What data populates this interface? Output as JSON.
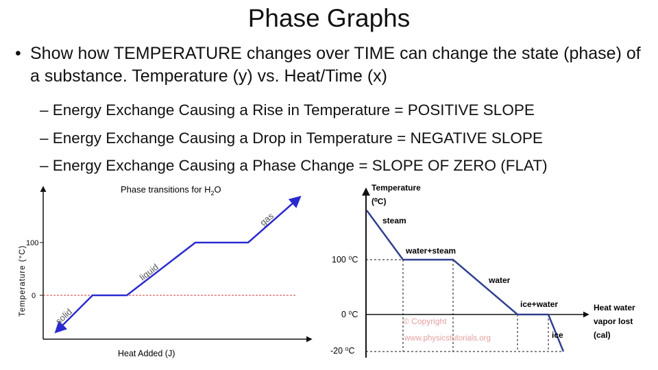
{
  "slide": {
    "title": "Phase Graphs",
    "bullet_mark": "•",
    "bullet": "Show how TEMPERATURE changes over TIME can change the state (phase) of a substance.  Temperature (y) vs. Heat/Time (x)",
    "sub_bullets": [
      "– Energy Exchange Causing a Rise in Temperature = POSITIVE SLOPE",
      "– Energy Exchange Causing a Drop in Temperature = NEGATIVE SLOPE",
      "– Energy Exchange Causing a Phase Change = SLOPE OF ZERO (FLAT)"
    ]
  },
  "left_chart": {
    "title": "Phase transitions for H",
    "title_sub": "2",
    "title_end": "O",
    "ylabel": "Temperature (°C)",
    "xlabel": "Heat Added (J)",
    "y_ticks": [
      "100",
      "0"
    ],
    "labels": {
      "solid": "solid",
      "liquid": "liquid",
      "gas": "gas"
    },
    "colors": {
      "curve": "#2a2ad0",
      "zero_line": "#cc3333"
    }
  },
  "right_chart": {
    "ylabel_1": "Temperature",
    "ylabel_2": "(⁰C)",
    "y_ticks": [
      "100 ⁰C",
      "0 ⁰C",
      "-20 ⁰C"
    ],
    "x_caption": [
      "Heat water",
      "vapor lost",
      "(cal)"
    ],
    "labels": {
      "steam": "steam",
      "water_steam": "water+steam",
      "water": "water",
      "ice_water": "ice+water",
      "ice": "ice"
    },
    "watermark": [
      "© Copyright",
      "www.physicstutorials.org"
    ],
    "colors": {
      "curve": "#2f3f8f",
      "watermark": "#e2a0a0"
    }
  },
  "chart_data": [
    {
      "type": "line",
      "title": "Phase transitions for H2O",
      "xlabel": "Heat Added (J)",
      "ylabel": "Temperature (°C)",
      "y_ticks": [
        0,
        100
      ],
      "series": [
        {
          "name": "",
          "points": [
            [
              0,
              -50
            ],
            [
              1,
              0
            ],
            [
              2,
              0
            ],
            [
              3.5,
              100
            ],
            [
              4.8,
              100
            ],
            [
              5.8,
              180
            ]
          ]
        }
      ],
      "annotations": [
        "solid",
        "liquid",
        "gas"
      ]
    },
    {
      "type": "line",
      "ylabel": "Temperature (⁰C)",
      "xlabel": "Heat water vapor lost (cal)",
      "y_ticks": [
        -20,
        0,
        100
      ],
      "series": [
        {
          "name": "",
          "points": [
            [
              0,
              150
            ],
            [
              1,
              100
            ],
            [
              2.2,
              100
            ],
            [
              3.9,
              0
            ],
            [
              5.2,
              0
            ],
            [
              6,
              -20
            ]
          ]
        }
      ],
      "annotations": [
        "steam",
        "water+steam",
        "water",
        "ice+water",
        "ice"
      ]
    }
  ]
}
